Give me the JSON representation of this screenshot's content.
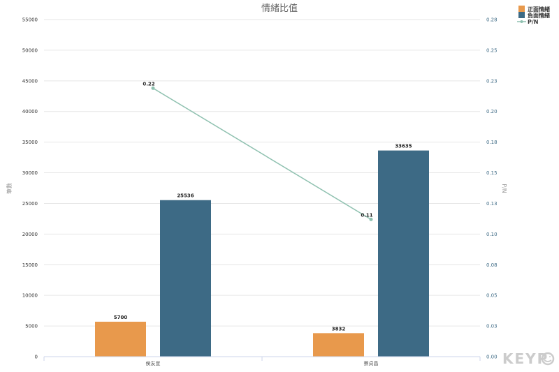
{
  "chart_data": {
    "type": "bar",
    "title": "情緒比值",
    "categories": [
      "侯友宜",
      "蔡貞昌"
    ],
    "series": [
      {
        "name": "正面情緒",
        "type": "bar",
        "axis": "left",
        "color": "#e8994c",
        "values": [
          5700,
          3832
        ],
        "labels": [
          "5700",
          "3832"
        ]
      },
      {
        "name": "負面情緒",
        "type": "bar",
        "axis": "left",
        "color": "#3d6a85",
        "values": [
          25536,
          33635
        ],
        "labels": [
          "25536",
          "33635"
        ]
      },
      {
        "name": "P/N",
        "type": "line",
        "axis": "right",
        "color": "#8fc1b0",
        "values": [
          0.223,
          0.114
        ],
        "labels": [
          "0.22",
          "0.11"
        ]
      }
    ],
    "ylabel": "筆數",
    "ylabel_right": "P/N",
    "ylim": [
      0,
      55000
    ],
    "ylim_right": [
      0,
      0.28
    ],
    "yticks": [
      "0",
      "5000",
      "10000",
      "15000",
      "20000",
      "25000",
      "30000",
      "35000",
      "40000",
      "45000",
      "50000",
      "55000"
    ],
    "yticks_right": [
      "0.00",
      "0.03",
      "0.05",
      "0.08",
      "0.10",
      "0.13",
      "0.15",
      "0.18",
      "0.20",
      "0.23",
      "0.25",
      "0.28"
    ],
    "grid": true,
    "legend": "top-right"
  },
  "watermark": {
    "text": "KEYP",
    "icon": "smiley-icon"
  }
}
